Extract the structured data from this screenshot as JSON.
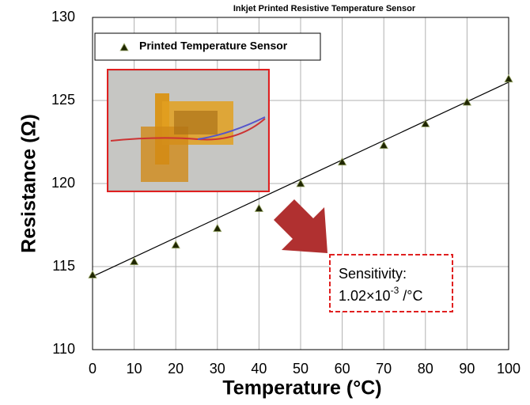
{
  "chart_data": {
    "type": "scatter",
    "title": "Inkjet Printed Resistive Temperature Sensor",
    "x_label": "Temperature (°C)",
    "y_label": "Resistance (Ω)",
    "series": [
      {
        "name": "Printed Temperature Sensor",
        "color": "#1f2600",
        "x": [
          0,
          10,
          20,
          30,
          40,
          50,
          60,
          70,
          80,
          90,
          100
        ],
        "values": [
          114.5,
          115.3,
          116.3,
          117.3,
          118.5,
          120.0,
          121.3,
          122.3,
          123.6,
          124.9,
          126.3
        ]
      }
    ],
    "trendline": {
      "x": [
        0,
        100
      ],
      "values": [
        114.4,
        126.1
      ],
      "color": "#000000"
    },
    "xlim": [
      0,
      100
    ],
    "xticks": [
      0,
      10,
      20,
      30,
      40,
      50,
      60,
      70,
      80,
      90,
      100
    ],
    "ylim": [
      110,
      130
    ],
    "yticks": [
      110,
      115,
      120,
      125,
      130
    ],
    "grid": true,
    "legend": "upper left",
    "annotation": {
      "line1": "Sensitivity:",
      "base": "1.02×10",
      "exponent": "-3",
      "unit": " /°C"
    }
  }
}
